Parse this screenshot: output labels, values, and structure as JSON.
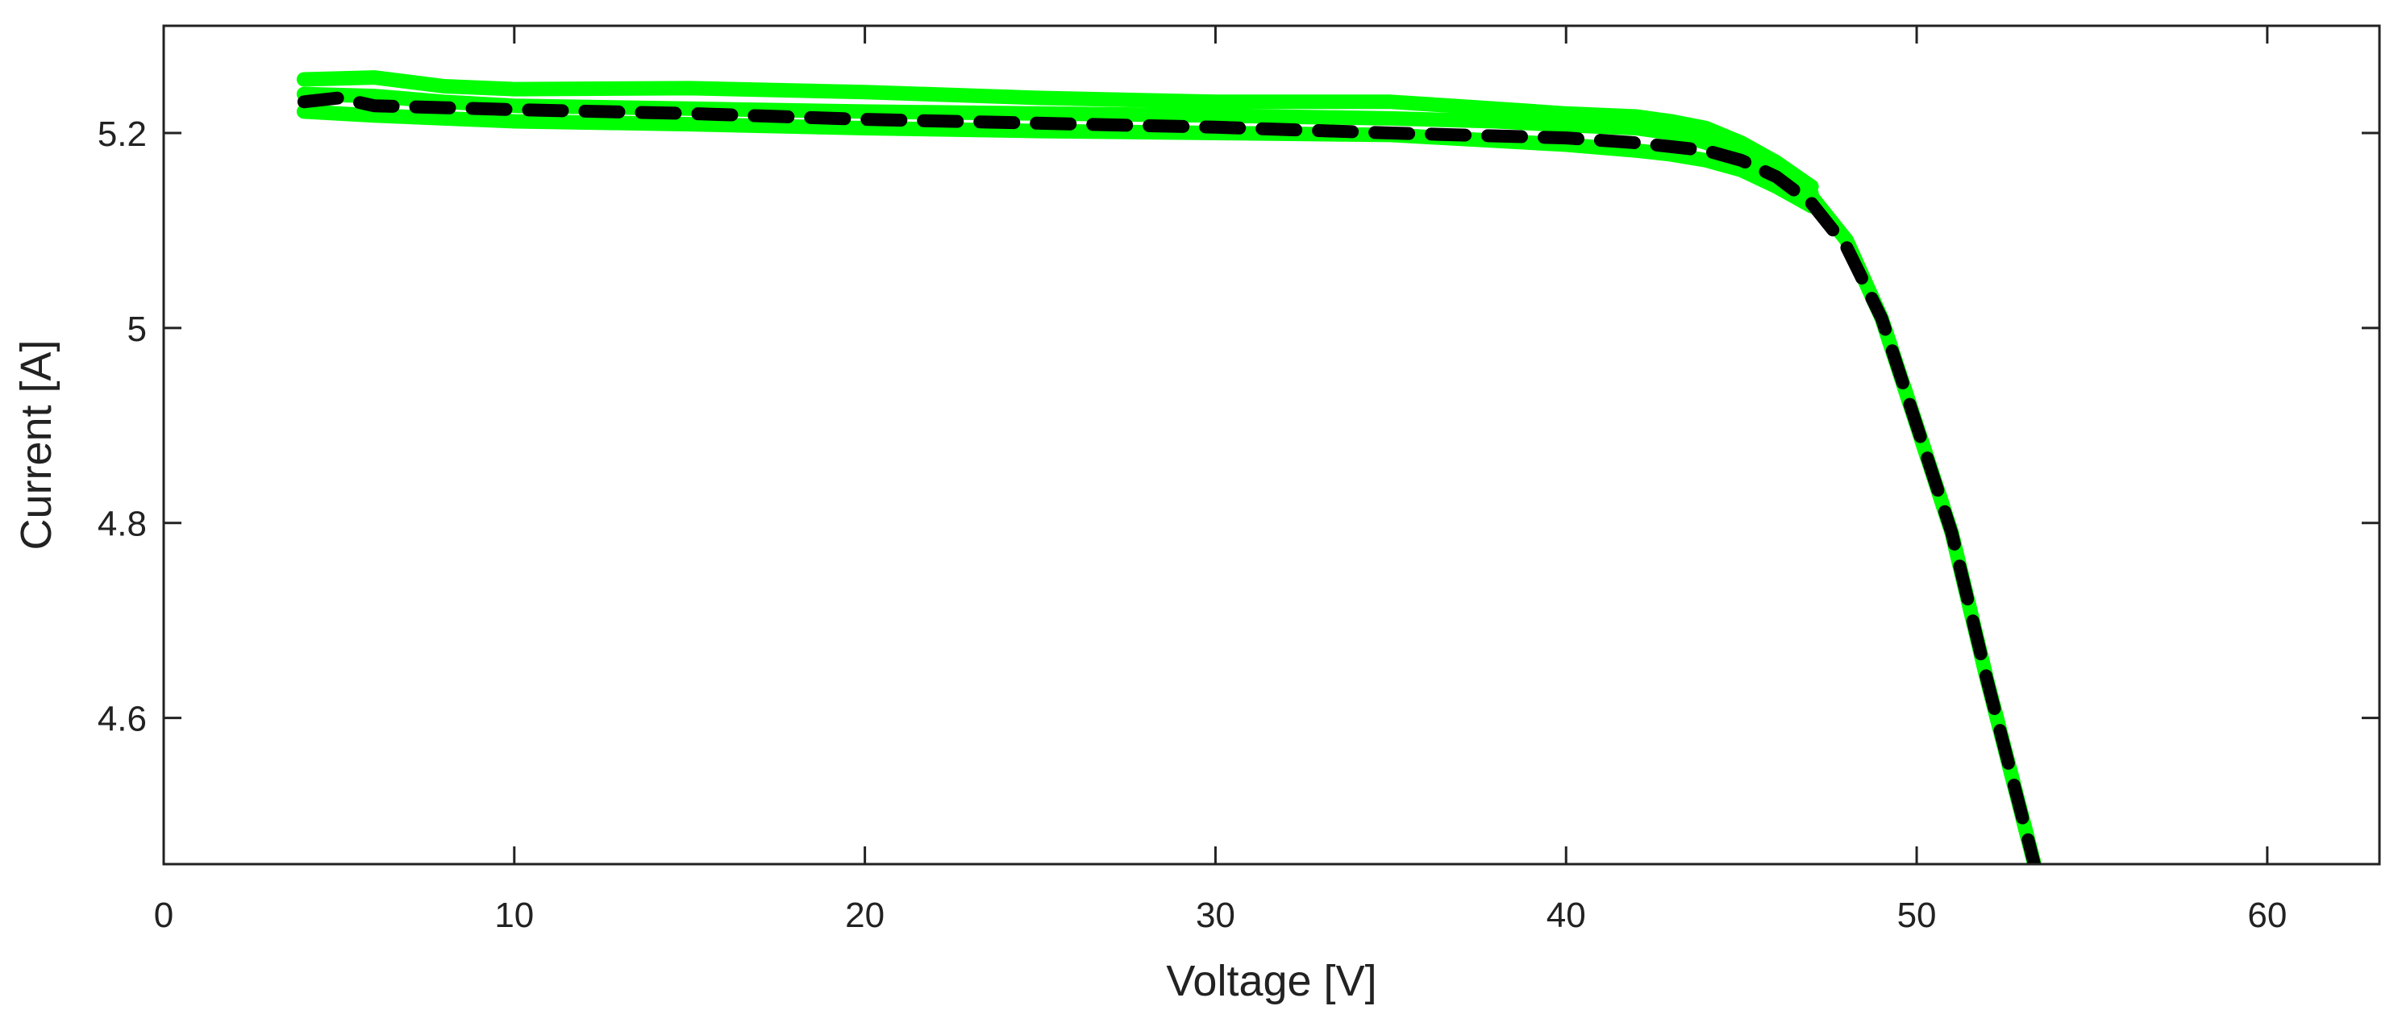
{
  "chart_data": {
    "type": "line",
    "title": "",
    "xlabel": "Voltage [V]",
    "ylabel": "Current [A]",
    "xlim": [
      0,
      63.2
    ],
    "ylim": [
      4.45,
      5.31
    ],
    "xticks": [
      0,
      10,
      20,
      30,
      40,
      50,
      60
    ],
    "xtick_labels": [
      "0",
      "10",
      "20",
      "30",
      "40",
      "50",
      "60"
    ],
    "yticks": [
      4.6,
      4.8,
      5,
      5.2
    ],
    "ytick_labels": [
      "4.6",
      "4.8",
      "5",
      "5.2"
    ],
    "grid": false,
    "series": [
      {
        "style": "solid",
        "color": "#00ff00",
        "x": [
          4,
          6,
          8,
          10,
          15,
          20,
          25,
          30,
          35,
          38,
          40,
          42,
          43,
          44,
          45,
          46,
          47
        ],
        "y": [
          5.255,
          5.257,
          5.248,
          5.245,
          5.246,
          5.242,
          5.236,
          5.232,
          5.232,
          5.225,
          5.22,
          5.217,
          5.212,
          5.205,
          5.19,
          5.17,
          5.145
        ]
      },
      {
        "style": "solid",
        "color": "#00ff00",
        "x": [
          4,
          6,
          8,
          10,
          15,
          20,
          25,
          30,
          35,
          38,
          40,
          42,
          43,
          44,
          45,
          46,
          47
        ],
        "y": [
          5.24,
          5.238,
          5.232,
          5.228,
          5.225,
          5.222,
          5.22,
          5.218,
          5.215,
          5.212,
          5.208,
          5.205,
          5.2,
          5.19,
          5.175,
          5.158,
          5.138
        ]
      },
      {
        "style": "solid",
        "color": "#00ff00",
        "x": [
          4,
          6,
          8,
          10,
          15,
          20,
          25,
          30,
          35,
          38,
          40,
          42,
          43,
          44,
          45,
          46,
          47
        ],
        "y": [
          5.222,
          5.218,
          5.215,
          5.212,
          5.209,
          5.205,
          5.202,
          5.2,
          5.198,
          5.192,
          5.188,
          5.182,
          5.178,
          5.172,
          5.162,
          5.145,
          5.125
        ]
      },
      {
        "style": "solid",
        "color": "#00ff00",
        "x": [
          47,
          48,
          49,
          50,
          51,
          52,
          53,
          53.5
        ],
        "y": [
          5.135,
          5.09,
          5.01,
          4.9,
          4.79,
          4.64,
          4.5,
          4.43
        ]
      },
      {
        "style": "dashed",
        "color": "#000000",
        "x": [
          4,
          5,
          6,
          8,
          10,
          15,
          20,
          25,
          30,
          35,
          40,
          42,
          44,
          45,
          46,
          47,
          48,
          49,
          50,
          51,
          52,
          53,
          53.5
        ],
        "y": [
          5.232,
          5.236,
          5.228,
          5.226,
          5.224,
          5.22,
          5.214,
          5.21,
          5.206,
          5.2,
          5.195,
          5.19,
          5.182,
          5.172,
          5.155,
          5.128,
          5.083,
          5.01,
          4.9,
          4.79,
          4.64,
          4.5,
          4.43
        ]
      }
    ]
  }
}
